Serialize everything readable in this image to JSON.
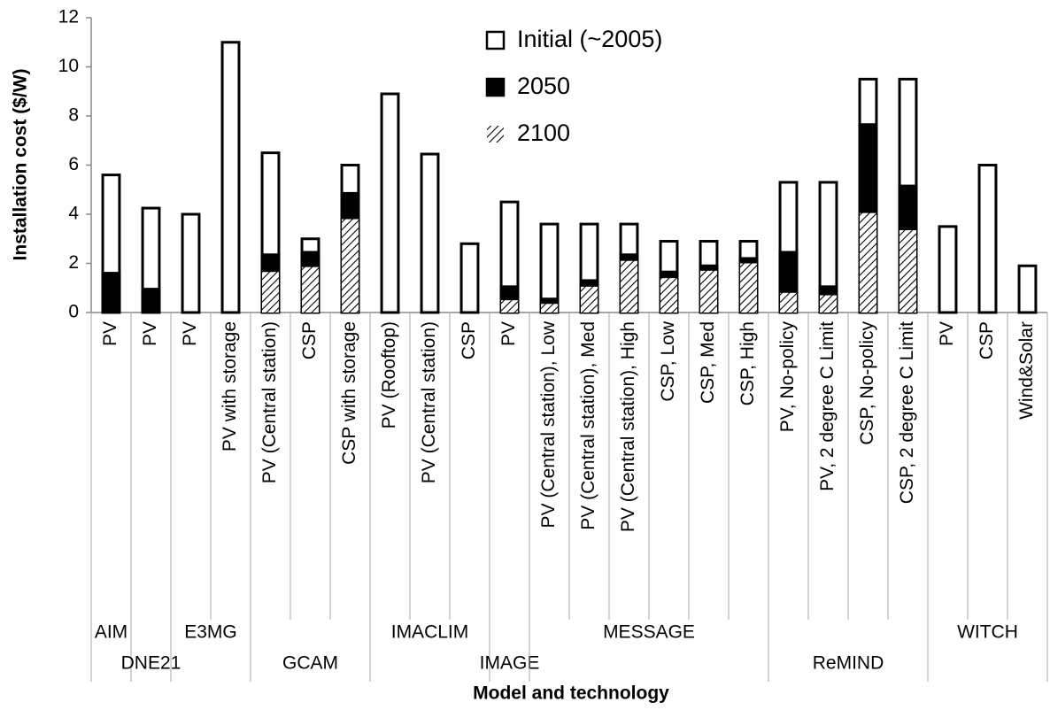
{
  "chart_data": {
    "type": "bar",
    "overlap": true,
    "y_label": "Installation cost ($/W)",
    "x_label": "Model and technology",
    "groups": [
      {
        "name": "AIM",
        "categories": [
          "PV"
        ]
      },
      {
        "name": "DNE21",
        "categories": [
          "PV"
        ]
      },
      {
        "name": "E3MG",
        "categories": [
          "PV",
          "PV with storage"
        ]
      },
      {
        "name": "GCAM",
        "categories": [
          "PV (Central station)",
          "CSP",
          "CSP with storage"
        ]
      },
      {
        "name": "IMACLIM",
        "categories": [
          "PV (Rooftop)",
          "PV (Central station)",
          "CSP"
        ]
      },
      {
        "name": "IMAGE",
        "categories": [
          "PV"
        ]
      },
      {
        "name": "MESSAGE",
        "categories": [
          "PV (Central station), Low",
          "PV (Central station), Med",
          "PV (Central station), High",
          "CSP, Low",
          "CSP, Med",
          "CSP, High"
        ]
      },
      {
        "name": "ReMIND",
        "categories": [
          "PV, No-policy",
          "PV, 2 degree C Limit",
          "CSP, No-policy",
          "CSP, 2 degree C Limit"
        ]
      },
      {
        "name": "WITCH",
        "categories": [
          "PV",
          "CSP",
          "Wind&Solar"
        ]
      }
    ],
    "series": [
      {
        "name": "Initial (~2005)",
        "color": "#ffffff",
        "hatch": false,
        "values": [
          5.6,
          4.25,
          4.0,
          11.0,
          6.5,
          3.0,
          6.0,
          8.9,
          6.45,
          2.8,
          4.5,
          3.6,
          3.6,
          3.6,
          2.9,
          2.9,
          2.9,
          5.3,
          5.3,
          9.5,
          9.5,
          3.5,
          6.0,
          1.9
        ]
      },
      {
        "name": "2050",
        "color": "#000000",
        "hatch": false,
        "values": [
          1.6,
          0.95,
          null,
          null,
          2.35,
          2.45,
          4.85,
          null,
          null,
          null,
          1.05,
          0.55,
          1.3,
          2.35,
          1.65,
          1.9,
          2.2,
          2.45,
          1.05,
          7.65,
          5.15,
          null,
          null,
          null
        ]
      },
      {
        "name": "2100",
        "color": "#000000",
        "hatch": true,
        "values": [
          null,
          null,
          null,
          null,
          1.65,
          1.85,
          3.8,
          null,
          null,
          null,
          0.5,
          0.35,
          1.05,
          2.1,
          1.4,
          1.7,
          2.0,
          0.8,
          0.7,
          4.05,
          3.35,
          null,
          null,
          null
        ]
      }
    ],
    "ylim": [
      0,
      12
    ],
    "yticks": [
      0,
      2,
      4,
      6,
      8,
      10,
      12
    ],
    "grid": false,
    "legend": "top"
  }
}
